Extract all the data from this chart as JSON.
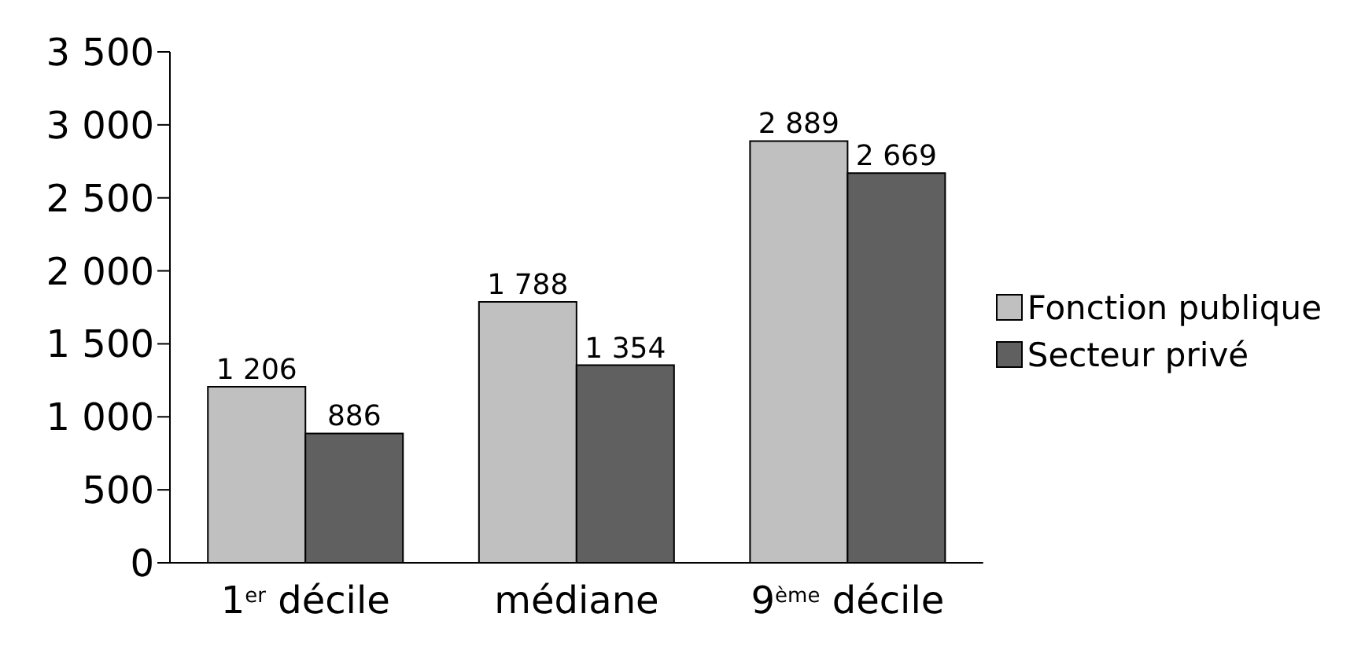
{
  "chart_data": {
    "type": "bar",
    "categories": [
      "1$^{er}$ décile",
      "médiane",
      "9$^{ème}$ décile"
    ],
    "series": [
      {
        "name": "Fonction publique",
        "color": "#c0c0c0",
        "values": [
          1206,
          1788,
          2889
        ],
        "value_labels": [
          "1 206",
          "1 788",
          "2 889"
        ]
      },
      {
        "name": "Secteur privé",
        "color": "#606060",
        "values": [
          886,
          1354,
          2669
        ],
        "value_labels": [
          "886",
          "1 354",
          "2 669"
        ]
      }
    ],
    "ylim": [
      0,
      3500
    ],
    "yticks": [
      0,
      500,
      {
        "value": 1000,
        "label": "1 000"
      },
      {
        "value": 1500,
        "label": "1 500"
      },
      {
        "value": 2000,
        "label": "2 000"
      },
      {
        "value": 2500,
        "label": "2 500"
      },
      {
        "value": 3000,
        "label": "3 000"
      },
      {
        "value": 3500,
        "label": "3 500"
      }
    ],
    "grid": false,
    "legend": "right"
  }
}
